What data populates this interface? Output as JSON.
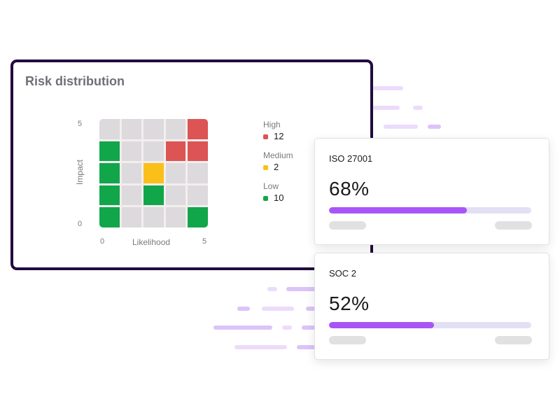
{
  "risk_panel": {
    "title": "Risk distribution",
    "y_axis": {
      "label": "Impact",
      "min": "0",
      "max": "5"
    },
    "x_axis": {
      "label": "Likelihood",
      "min": "0",
      "max": "5"
    },
    "matrix": [
      [
        "empty",
        "empty",
        "empty",
        "empty",
        "high"
      ],
      [
        "low",
        "empty",
        "empty",
        "high",
        "high"
      ],
      [
        "low",
        "empty",
        "medium",
        "empty",
        "empty"
      ],
      [
        "low",
        "empty",
        "low",
        "empty",
        "empty"
      ],
      [
        "low",
        "empty",
        "empty",
        "empty",
        "low"
      ]
    ],
    "legend": [
      {
        "label": "High",
        "value": "12",
        "color": "#dc5454"
      },
      {
        "label": "Medium",
        "value": "2",
        "color": "#fbbf1a"
      },
      {
        "label": "Low",
        "value": "10",
        "color": "#12a64b"
      }
    ]
  },
  "colors": {
    "high": "#dc5454",
    "medium": "#fbbf1a",
    "low": "#12a64b",
    "empty": "#dcdadc",
    "accent": "#a855f7",
    "panel_border": "#230b3d"
  },
  "compliance_cards": [
    {
      "title": "ISO 27001",
      "percent_label": "68%",
      "percent": 68
    },
    {
      "title": "SOC 2",
      "percent_label": "52%",
      "percent": 52
    }
  ],
  "chart_data": {
    "type": "heatmap",
    "title": "Risk distribution",
    "xlabel": "Likelihood",
    "ylabel": "Impact",
    "xlim": [
      0,
      5
    ],
    "ylim": [
      0,
      5
    ],
    "rows_top_to_bottom": [
      [
        "empty",
        "empty",
        "empty",
        "empty",
        "high"
      ],
      [
        "low",
        "empty",
        "empty",
        "high",
        "high"
      ],
      [
        "low",
        "empty",
        "medium",
        "empty",
        "empty"
      ],
      [
        "low",
        "empty",
        "low",
        "empty",
        "empty"
      ],
      [
        "low",
        "empty",
        "empty",
        "empty",
        "low"
      ]
    ],
    "legend": [
      {
        "label": "High",
        "count": 12
      },
      {
        "label": "Medium",
        "count": 2
      },
      {
        "label": "Low",
        "count": 10
      }
    ]
  }
}
